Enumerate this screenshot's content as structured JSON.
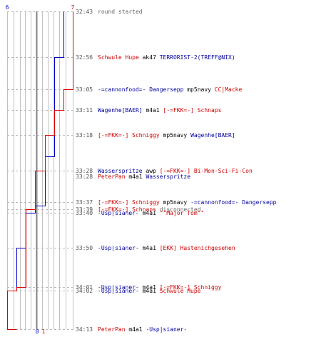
{
  "chart_data": {
    "type": "line",
    "title": "",
    "xlabel": "",
    "ylabel": "",
    "colors": {
      "blue": "#0000cc",
      "red": "#dd0000",
      "grid": "#c0c0c0",
      "axis": "#808080",
      "time": "#555555"
    },
    "x_axis": {
      "min": 0,
      "max": 7,
      "top_label_left": "6",
      "top_label_right": "7",
      "bottom_label_left": "0",
      "bottom_label_right": "1"
    },
    "y_axis": {
      "start_seconds": 0,
      "end_seconds": 90
    },
    "series": [
      {
        "key": "blue",
        "steps": [
          [
            0,
            6
          ],
          [
            13,
            5
          ],
          [
            41,
            4
          ],
          [
            55,
            3
          ],
          [
            57,
            2
          ],
          [
            67,
            1
          ],
          [
            79,
            0
          ],
          [
            90,
            0
          ]
        ]
      },
      {
        "key": "red",
        "steps": [
          [
            0,
            7
          ],
          [
            22,
            6
          ],
          [
            28,
            5
          ],
          [
            35,
            4
          ],
          [
            45,
            3
          ],
          [
            56,
            2
          ],
          [
            78,
            1
          ],
          [
            79,
            0
          ],
          [
            90,
            1
          ]
        ]
      }
    ],
    "events": [
      {
        "time": "32:43",
        "t": 0,
        "segments": [
          {
            "text": "round started",
            "c": "grey"
          }
        ]
      },
      {
        "time": "32:56",
        "t": 13,
        "segments": [
          {
            "text": "Schwule Hupe",
            "c": "red"
          },
          {
            "text": " ak47 ",
            "c": "black"
          },
          {
            "text": "TERRORIST-2(TREFF@NIX)",
            "c": "blue"
          }
        ]
      },
      {
        "time": "33:05",
        "t": 22,
        "segments": [
          {
            "text": "-=cannonfood=- Dangersepp",
            "c": "blue"
          },
          {
            "text": " mp5navy ",
            "c": "black"
          },
          {
            "text": "CC|Macke",
            "c": "red"
          }
        ]
      },
      {
        "time": "33:11",
        "t": 28,
        "segments": [
          {
            "text": "Wagenhe[BAER]",
            "c": "blue"
          },
          {
            "text": " m4a1 ",
            "c": "black"
          },
          {
            "text": "[-=FKK=-] Schnaps",
            "c": "red"
          }
        ]
      },
      {
        "time": "33:18",
        "t": 35,
        "segments": [
          {
            "text": "[-=FKK=-] Schniggy",
            "c": "red"
          },
          {
            "text": " mp5navy ",
            "c": "black"
          },
          {
            "text": "Wagenhe[BAER]",
            "c": "blue"
          }
        ]
      },
      {
        "time": "33:28",
        "t": 45,
        "segments": [
          {
            "text": "Wasserspritze",
            "c": "blue"
          },
          {
            "text": " awp ",
            "c": "black"
          },
          {
            "text": "[-=FKK=-] Bi-Mon-Sci-Fi-Con",
            "c": "red"
          }
        ]
      },
      {
        "time": "33:28",
        "t": 45,
        "line2": true,
        "segments": [
          {
            "text": "PeterPan",
            "c": "red"
          },
          {
            "text": " m4a1 ",
            "c": "black"
          },
          {
            "text": "Wasserspritze",
            "c": "blue"
          }
        ]
      },
      {
        "time": "33:37",
        "t": 54,
        "segments": [
          {
            "text": "[-=FKK=-] Schniggy",
            "c": "red"
          },
          {
            "text": " mp5navy ",
            "c": "black"
          },
          {
            "text": "-=cannonfood=- Dangersepp",
            "c": "blue"
          }
        ]
      },
      {
        "time": "33:39",
        "t": 56,
        "segments": [
          {
            "text": "[-=FKK=-] Schnaps",
            "c": "red"
          },
          {
            "text": " disconnected",
            "c": "grey"
          }
        ]
      },
      {
        "time": "33:40",
        "t": 57,
        "segments": [
          {
            "text": "-Usp|sianer-",
            "c": "blue"
          },
          {
            "text": " m4a1 ",
            "c": "black"
          },
          {
            "text": "\"\"Major Tom\"\"",
            "c": "red"
          }
        ]
      },
      {
        "time": "33:50",
        "t": 67,
        "segments": [
          {
            "text": "-Usp|sianer-",
            "c": "blue"
          },
          {
            "text": " m4a1 ",
            "c": "black"
          },
          {
            "text": "[EKK] Hastenichgesehen",
            "c": "red"
          }
        ]
      },
      {
        "time": "34:01",
        "t": 78,
        "segments": [
          {
            "text": "-Usp|sianer-",
            "c": "blue"
          },
          {
            "text": " m4a1 ",
            "c": "black"
          },
          {
            "text": "[-=FKK=-] Schniggy",
            "c": "red"
          }
        ]
      },
      {
        "time": "34:02",
        "t": 79,
        "segments": [
          {
            "text": "-Usp|sianer-",
            "c": "blue"
          },
          {
            "text": " m4a1 ",
            "c": "black"
          },
          {
            "text": "Schwule Hupe",
            "c": "red"
          }
        ]
      },
      {
        "time": "34:13",
        "t": 90,
        "segments": [
          {
            "text": "PeterPan",
            "c": "red"
          },
          {
            "text": " m4a1 ",
            "c": "black"
          },
          {
            "text": "-Usp|sianer-",
            "c": "blue"
          }
        ]
      }
    ]
  }
}
